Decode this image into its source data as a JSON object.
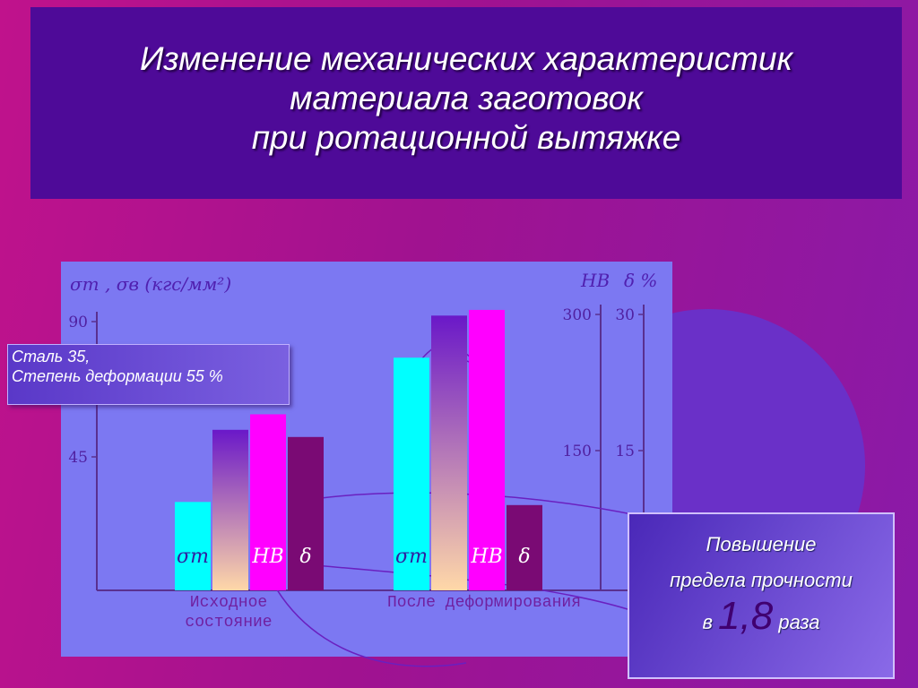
{
  "slide": {
    "title": [
      "Изменение механических характеристик",
      "материала заготовок",
      "при ротационной вытяжке"
    ],
    "note": [
      "Сталь 35,",
      "Степень деформации 55 %"
    ],
    "callout": {
      "line1": "Повышение",
      "line2": "предела прочности",
      "prefix": "в",
      "value": "1,8",
      "suffix": "раза"
    }
  },
  "chart_data": {
    "type": "bar",
    "y_label": "σт , σв  (кгс/мм²)",
    "y2_label": "HB",
    "y3_label": "δ %",
    "categories": [
      "Исходное состояние",
      "После деформирования"
    ],
    "series": [
      {
        "name": "σт",
        "color": "#00ffff",
        "values": [
          30,
          78
        ]
      },
      {
        "color": "#6a18c8",
        "values": [
          54,
          92
        ]
      },
      {
        "name": "HB",
        "color": "#ff00ff",
        "axis": "y2",
        "values": [
          190,
          305
        ]
      },
      {
        "name": "δ",
        "color": "#7a0a74",
        "axis": "y3",
        "values": [
          16.5,
          9
        ]
      }
    ],
    "ylim": [
      0,
      90
    ],
    "yticks": [
      45,
      90
    ],
    "y2lim": [
      0,
      300
    ],
    "y2ticks": [
      150,
      300
    ],
    "y3lim": [
      0,
      30
    ],
    "y3ticks": [
      15,
      30
    ]
  }
}
